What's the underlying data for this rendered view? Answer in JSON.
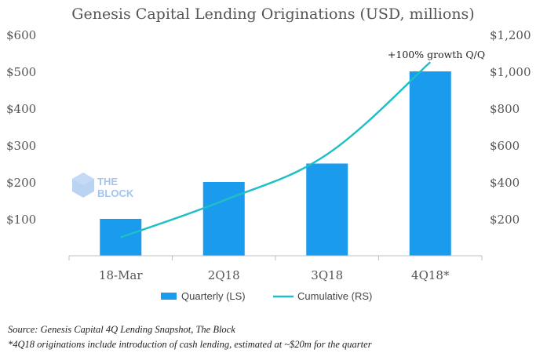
{
  "chart_data": {
    "type": "bar",
    "title": "Genesis Capital Lending Originations (USD, millions)",
    "categories": [
      "18-Mar",
      "2Q18",
      "3Q18",
      "4Q18*"
    ],
    "series": [
      {
        "name": "Quarterly (LS)",
        "type": "bar",
        "axis": "left",
        "values": [
          100,
          200,
          250,
          500
        ]
      },
      {
        "name": "Cumulative (RS)",
        "type": "line",
        "axis": "right",
        "values": [
          100,
          300,
          550,
          1050
        ]
      }
    ],
    "left_axis": {
      "ylim": [
        0,
        600
      ],
      "ticks": [
        100,
        200,
        300,
        400,
        500,
        600
      ],
      "tick_labels": [
        "$100",
        "$200",
        "$300",
        "$400",
        "$500",
        "$600"
      ]
    },
    "right_axis": {
      "ylim": [
        0,
        1200
      ],
      "ticks": [
        200,
        400,
        600,
        800,
        1000,
        1200
      ],
      "tick_labels": [
        "$200",
        "$400",
        "$600",
        "$800",
        "$1,000",
        "$1,200"
      ]
    },
    "annotation": "+100% growth Q/Q",
    "legend": [
      "Quarterly (LS)",
      "Cumulative (RS)"
    ],
    "grid": false
  },
  "colors": {
    "bar": "#1a9bed",
    "line": "#1ec0c6",
    "text": "#555555",
    "axis": "#bfbfbf",
    "logo": "#a3c4ee"
  },
  "watermark": {
    "line1": "THE",
    "line2": "BLOCK"
  },
  "footer": {
    "source": "Source: Genesis Capital 4Q Lending Snapshot, The Block",
    "note": "*4Q18 originations include introduction of cash lending, estimated at ~$20m for the quarter"
  }
}
